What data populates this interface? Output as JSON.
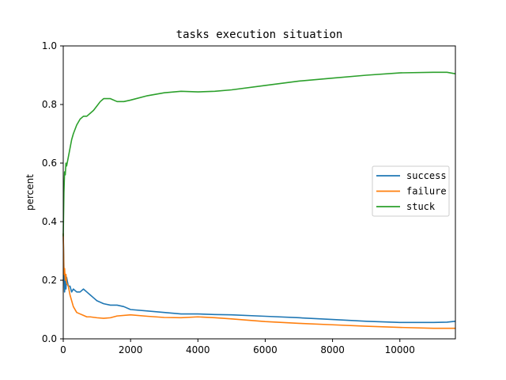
{
  "chart_data": {
    "type": "line",
    "title": "tasks execution situation",
    "xlabel": "",
    "ylabel": "percent",
    "xlim": [
      0,
      11650
    ],
    "ylim": [
      0,
      1.0
    ],
    "xticks": [
      0,
      2000,
      4000,
      6000,
      8000,
      10000
    ],
    "yticks": [
      0.0,
      0.2,
      0.4,
      0.6,
      0.8,
      1.0
    ],
    "xtick_labels": [
      "0",
      "2000",
      "4000",
      "6000",
      "8000",
      "10000"
    ],
    "ytick_labels": [
      "0.0",
      "0.2",
      "0.4",
      "0.6",
      "0.8",
      "1.0"
    ],
    "grid": false,
    "legend_position": "center-right",
    "series": [
      {
        "name": "success",
        "color": "#1f77b4",
        "x": [
          0,
          20,
          40,
          60,
          80,
          100,
          150,
          200,
          250,
          300,
          400,
          500,
          600,
          700,
          800,
          900,
          1000,
          1200,
          1400,
          1600,
          1800,
          2000,
          2500,
          3000,
          3500,
          4000,
          4500,
          5000,
          6000,
          7000,
          8000,
          9000,
          10000,
          11000,
          11400,
          11650
        ],
        "y": [
          0.36,
          0.25,
          0.16,
          0.2,
          0.17,
          0.21,
          0.18,
          0.18,
          0.16,
          0.17,
          0.16,
          0.16,
          0.17,
          0.16,
          0.15,
          0.14,
          0.13,
          0.12,
          0.115,
          0.115,
          0.11,
          0.1,
          0.095,
          0.09,
          0.085,
          0.085,
          0.083,
          0.082,
          0.077,
          0.072,
          0.066,
          0.06,
          0.056,
          0.056,
          0.057,
          0.06
        ]
      },
      {
        "name": "failure",
        "color": "#ff7f0e",
        "x": [
          0,
          20,
          40,
          60,
          80,
          100,
          150,
          200,
          250,
          300,
          400,
          500,
          600,
          700,
          800,
          1000,
          1200,
          1400,
          1600,
          2000,
          2500,
          3000,
          3500,
          4000,
          4500,
          5000,
          6000,
          7000,
          8000,
          9000,
          10000,
          11000,
          11650
        ],
        "y": [
          0.36,
          0.22,
          0.24,
          0.2,
          0.22,
          0.19,
          0.18,
          0.15,
          0.13,
          0.11,
          0.09,
          0.085,
          0.08,
          0.075,
          0.075,
          0.072,
          0.07,
          0.072,
          0.078,
          0.082,
          0.077,
          0.073,
          0.072,
          0.075,
          0.072,
          0.068,
          0.059,
          0.053,
          0.048,
          0.043,
          0.039,
          0.036,
          0.036
        ]
      },
      {
        "name": "stuck",
        "color": "#2ca02c",
        "x": [
          0,
          20,
          40,
          60,
          80,
          100,
          150,
          200,
          250,
          300,
          400,
          500,
          600,
          700,
          800,
          900,
          1000,
          1100,
          1200,
          1400,
          1600,
          1800,
          2000,
          2500,
          3000,
          3500,
          4000,
          4500,
          5000,
          6000,
          7000,
          8000,
          9000,
          10000,
          11000,
          11400,
          11650
        ],
        "y": [
          0.35,
          0.5,
          0.57,
          0.56,
          0.6,
          0.59,
          0.62,
          0.65,
          0.68,
          0.7,
          0.73,
          0.75,
          0.76,
          0.76,
          0.77,
          0.78,
          0.795,
          0.81,
          0.82,
          0.82,
          0.81,
          0.81,
          0.815,
          0.83,
          0.84,
          0.845,
          0.843,
          0.845,
          0.85,
          0.865,
          0.88,
          0.89,
          0.9,
          0.908,
          0.91,
          0.91,
          0.905
        ]
      }
    ]
  }
}
